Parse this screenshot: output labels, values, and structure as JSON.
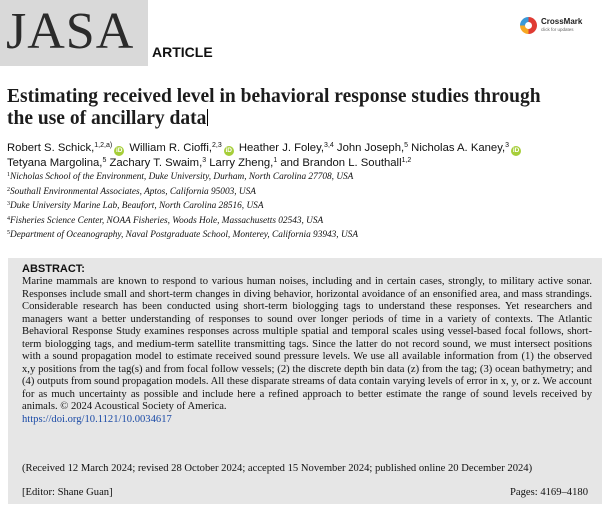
{
  "journal": {
    "logo": "JASA",
    "label": "ARTICLE",
    "crossmark": {
      "name": "CrossMark",
      "sub": "click for updates"
    }
  },
  "title": "Estimating received level in behavioral response studies through the use of ancillary data",
  "authors": [
    {
      "name": "Robert S. Schick,",
      "sup": "1,2,a)",
      "orcid": true
    },
    {
      "name": "William R. Cioffi,",
      "sup": "2,3",
      "orcid": true
    },
    {
      "name": "Heather J. Foley,",
      "sup": "3,4",
      "orcid": false
    },
    {
      "name": "John Joseph,",
      "sup": "5",
      "orcid": false
    },
    {
      "name": "Nicholas A. Kaney,",
      "sup": "3",
      "orcid": true
    },
    {
      "name": "Tetyana Margolina,",
      "sup": "5",
      "orcid": false
    },
    {
      "name": "Zachary T. Swaim,",
      "sup": "3",
      "orcid": false
    },
    {
      "name": "Larry Zheng,",
      "sup": "1",
      "orcid": false
    },
    {
      "name": "and Brandon L. Southall",
      "sup": "1,2",
      "orcid": false
    }
  ],
  "affiliations": [
    {
      "num": "1",
      "text": "Nicholas School of the Environment, Duke University, Durham, North Carolina 27708, USA"
    },
    {
      "num": "2",
      "text": "Southall Environmental Associates, Aptos, California 95003, USA"
    },
    {
      "num": "3",
      "text": "Duke University Marine Lab, Beaufort, North Carolina 28516, USA"
    },
    {
      "num": "4",
      "text": "Fisheries Science Center, NOAA Fisheries, Woods Hole, Massachusetts 02543, USA"
    },
    {
      "num": "5",
      "text": "Department of Oceanography, Naval Postgraduate School, Monterey, California 93943, USA"
    }
  ],
  "abstract": {
    "heading": "ABSTRACT:",
    "body": "Marine mammals are known to respond to various human noises, including and in certain cases, strongly, to military active sonar. Responses include small and short-term changes in diving behavior, horizontal avoidance of an ensonified area, and mass strandings. Considerable research has been conducted using short-term biologging tags to understand these responses. Yet researchers and managers want a better understanding of responses to sound over longer periods of time in a variety of contexts. The Atlantic Behavioral Response Study examines responses across multiple spatial and temporal scales using vessel-based focal follows, short-term biologging tags, and medium-term satellite transmitting tags. Since the latter do not record sound, we must intersect positions with a sound propagation model to estimate received sound pressure levels. We use all available information from (1) the observed x,y positions from the tag(s) and from focal follow vessels; (2) the discrete depth bin data (z) from the tag; (3) ocean bathymetry; and (4) outputs from sound propagation models. All these disparate streams of data contain varying levels of error in x, y, or z. We account for as much uncertainty as possible and include here a refined approach to better estimate the range of sound levels received by animals. © 2024 Acoustical Society of America.",
    "doi": "https://doi.org/10.1121/10.0034617",
    "history": "(Received 12 March 2024; revised 28 October 2024; accepted 15 November 2024; published online 20 December 2024)",
    "editor": "[Editor: Shane Guan]",
    "pages": "Pages: 4169–4180"
  }
}
